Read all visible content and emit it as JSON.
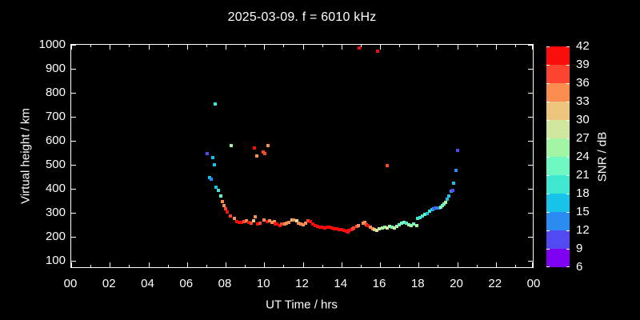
{
  "title": "2025-03-09. f = 6010 kHz",
  "axes": {
    "x": {
      "label": "UT Time / hrs",
      "tick_labels": [
        "00",
        "02",
        "04",
        "06",
        "08",
        "10",
        "12",
        "14",
        "16",
        "18",
        "20",
        "22",
        "00"
      ],
      "major_step_hours": 2,
      "minor_step_hours": 1,
      "range_hours": [
        0,
        24
      ]
    },
    "y": {
      "label": "Virtual height / km",
      "tick_values": [
        1000,
        900,
        800,
        700,
        600,
        500,
        400,
        300,
        200,
        100
      ],
      "range_km": [
        100,
        1000
      ]
    }
  },
  "colorbar": {
    "label": "SNR / dB",
    "tick_labels": [
      "42",
      "39",
      "36",
      "33",
      "30",
      "27",
      "24",
      "21",
      "18",
      "15",
      "12",
      "9",
      "6"
    ],
    "segment_colors_top_to_bottom": [
      "#fb0d0c",
      "#fb4530",
      "#fb8d50",
      "#edc47e",
      "#cfe79e",
      "#a2f5a5",
      "#70f8c3",
      "#3fe9d1",
      "#17c3e9",
      "#2a8cf2",
      "#5249f0",
      "#7d00f0"
    ],
    "value_range_db": [
      6,
      42
    ],
    "bin_size_db": 3
  },
  "colors": {
    "background": "#000000",
    "frame": "#ffffff",
    "text": "#ffffff"
  },
  "chart_data": {
    "type": "scatter",
    "title": "2025-03-09. f = 6010 kHz",
    "xlabel": "UT Time / hrs",
    "ylabel": "Virtual height / km",
    "color_label": "SNR / dB",
    "x_range_hours": [
      0,
      24
    ],
    "y_range_km": [
      100,
      1000
    ],
    "snr_range_db": [
      6,
      42
    ],
    "grid": false,
    "marker": "square",
    "point_format": [
      "time_hours",
      "virtual_height_km",
      "snr_db"
    ],
    "points": [
      [
        7.03,
        550,
        10
      ],
      [
        7.16,
        450,
        16
      ],
      [
        7.24,
        443,
        14
      ],
      [
        7.32,
        533,
        16
      ],
      [
        7.41,
        503,
        16
      ],
      [
        7.45,
        757,
        19
      ],
      [
        7.49,
        410,
        17
      ],
      [
        7.61,
        397,
        19
      ],
      [
        7.74,
        373,
        22
      ],
      [
        7.82,
        350,
        34
      ],
      [
        7.9,
        333,
        34
      ],
      [
        7.99,
        320,
        37
      ],
      [
        8.07,
        307,
        40
      ],
      [
        8.23,
        290,
        37
      ],
      [
        8.31,
        583,
        25
      ],
      [
        8.44,
        280,
        34
      ],
      [
        8.56,
        267,
        40
      ],
      [
        8.69,
        263,
        40
      ],
      [
        8.81,
        263,
        40
      ],
      [
        8.94,
        267,
        37
      ],
      [
        9.06,
        270,
        34
      ],
      [
        9.19,
        263,
        40
      ],
      [
        9.31,
        260,
        38
      ],
      [
        9.47,
        270,
        31
      ],
      [
        9.51,
        573,
        40
      ],
      [
        9.52,
        287,
        34
      ],
      [
        9.6,
        540,
        34
      ],
      [
        9.64,
        257,
        40
      ],
      [
        9.77,
        260,
        38
      ],
      [
        9.93,
        557,
        37
      ],
      [
        10.01,
        273,
        34
      ],
      [
        10.05,
        550,
        37
      ],
      [
        10.14,
        267,
        40
      ],
      [
        10.18,
        583,
        34
      ],
      [
        10.26,
        270,
        34
      ],
      [
        10.39,
        263,
        34
      ],
      [
        10.51,
        267,
        34
      ],
      [
        10.59,
        257,
        40
      ],
      [
        10.67,
        257,
        40
      ],
      [
        10.8,
        250,
        40
      ],
      [
        10.92,
        257,
        38
      ],
      [
        11.05,
        257,
        34
      ],
      [
        11.17,
        260,
        34
      ],
      [
        11.29,
        263,
        34
      ],
      [
        11.42,
        273,
        31
      ],
      [
        11.54,
        273,
        34
      ],
      [
        11.67,
        270,
        28
      ],
      [
        11.79,
        260,
        34
      ],
      [
        11.91,
        257,
        34
      ],
      [
        12.04,
        253,
        34
      ],
      [
        12.16,
        260,
        34
      ],
      [
        12.29,
        270,
        37
      ],
      [
        12.41,
        267,
        40
      ],
      [
        12.53,
        257,
        40
      ],
      [
        12.66,
        250,
        40
      ],
      [
        12.78,
        247,
        40
      ],
      [
        12.91,
        243,
        40
      ],
      [
        13.03,
        243,
        40
      ],
      [
        13.16,
        240,
        40
      ],
      [
        13.28,
        243,
        40
      ],
      [
        13.4,
        243,
        40
      ],
      [
        13.53,
        240,
        40
      ],
      [
        13.65,
        237,
        40
      ],
      [
        13.78,
        237,
        40
      ],
      [
        13.9,
        233,
        40
      ],
      [
        14.03,
        233,
        40
      ],
      [
        14.15,
        230,
        40
      ],
      [
        14.27,
        227,
        40
      ],
      [
        14.36,
        223,
        40
      ],
      [
        14.4,
        230,
        40
      ],
      [
        14.52,
        233,
        40
      ],
      [
        14.6,
        237,
        37
      ],
      [
        14.65,
        240,
        37
      ],
      [
        14.81,
        247,
        37
      ],
      [
        14.89,
        250,
        34
      ],
      [
        14.93,
        990,
        40
      ],
      [
        15.14,
        260,
        34
      ],
      [
        15.22,
        263,
        34
      ],
      [
        15.31,
        253,
        37
      ],
      [
        15.39,
        250,
        40
      ],
      [
        15.51,
        243,
        34
      ],
      [
        15.64,
        237,
        34
      ],
      [
        15.72,
        233,
        31
      ],
      [
        15.85,
        230,
        28
      ],
      [
        15.89,
        977,
        40
      ],
      [
        15.97,
        237,
        28
      ],
      [
        16.14,
        240,
        25
      ],
      [
        16.26,
        243,
        25
      ],
      [
        16.38,
        500,
        37
      ],
      [
        16.38,
        240,
        28
      ],
      [
        16.51,
        247,
        25
      ],
      [
        16.63,
        243,
        22
      ],
      [
        16.76,
        240,
        28
      ],
      [
        16.88,
        247,
        25
      ],
      [
        17.0,
        253,
        22
      ],
      [
        17.13,
        260,
        22
      ],
      [
        17.25,
        263,
        22
      ],
      [
        17.38,
        260,
        20
      ],
      [
        17.5,
        253,
        25
      ],
      [
        17.63,
        250,
        25
      ],
      [
        17.75,
        257,
        22
      ],
      [
        17.92,
        250,
        25
      ],
      [
        17.96,
        280,
        20
      ],
      [
        18.08,
        283,
        19
      ],
      [
        18.21,
        290,
        20
      ],
      [
        18.33,
        297,
        22
      ],
      [
        18.45,
        300,
        17
      ],
      [
        18.58,
        310,
        19
      ],
      [
        18.7,
        317,
        16
      ],
      [
        18.78,
        320,
        13
      ],
      [
        18.87,
        323,
        10
      ],
      [
        18.95,
        323,
        13
      ],
      [
        19.07,
        323,
        13
      ],
      [
        19.16,
        327,
        24
      ],
      [
        19.24,
        333,
        21
      ],
      [
        19.32,
        340,
        23
      ],
      [
        19.4,
        347,
        24
      ],
      [
        19.49,
        360,
        17
      ],
      [
        19.57,
        373,
        17
      ],
      [
        19.69,
        393,
        13
      ],
      [
        19.78,
        397,
        11
      ],
      [
        19.82,
        427,
        17
      ],
      [
        19.94,
        480,
        13
      ],
      [
        20.02,
        563,
        10
      ]
    ]
  }
}
